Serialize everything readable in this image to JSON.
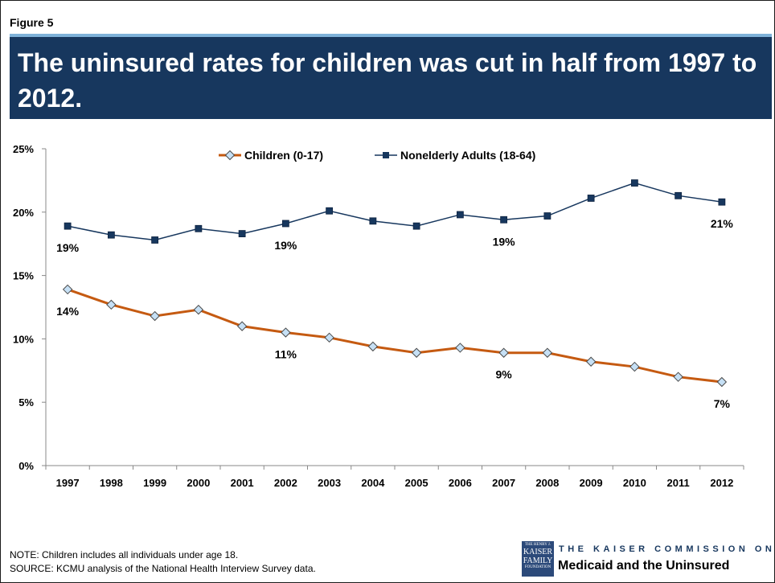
{
  "figure_label": "Figure 5",
  "title": "The uninsured rates for children was cut in half from 1997 to 2012.",
  "notes": [
    "NOTE: Children includes all individuals under age 18.",
    "SOURCE:  KCMU analysis of the National Health Interview Survey data."
  ],
  "logo": {
    "box_lines": [
      "THE HENRY J.",
      "KAISER",
      "FAMILY",
      "FOUNDATION"
    ],
    "line1": "THE KAISER COMMISSION ON",
    "line2": "Medicaid and the Uninsured"
  },
  "chart_data": {
    "type": "line",
    "x": [
      "1997",
      "1998",
      "1999",
      "2000",
      "2001",
      "2002",
      "2003",
      "2004",
      "2005",
      "2006",
      "2007",
      "2008",
      "2009",
      "2010",
      "2011",
      "2012"
    ],
    "ylim": [
      0,
      25
    ],
    "yticks": [
      "0%",
      "5%",
      "10%",
      "15%",
      "20%",
      "25%"
    ],
    "legend_position": "top-center",
    "grid": false,
    "series": [
      {
        "name": "Children (0-17)",
        "color": "#c55a11",
        "marker": "diamond",
        "values": [
          13.9,
          12.7,
          11.8,
          12.3,
          11.0,
          10.5,
          10.1,
          9.4,
          8.9,
          9.3,
          8.9,
          8.9,
          8.2,
          7.8,
          7.0,
          6.6
        ],
        "data_labels": [
          {
            "index": 0,
            "text": "14%"
          },
          {
            "index": 5,
            "text": "11%"
          },
          {
            "index": 10,
            "text": "9%"
          },
          {
            "index": 15,
            "text": "7%"
          }
        ]
      },
      {
        "name": "Nonelderly Adults (18-64)",
        "color": "#17375e",
        "marker": "square",
        "values": [
          18.9,
          18.2,
          17.8,
          18.7,
          18.3,
          19.1,
          20.1,
          19.3,
          18.9,
          19.8,
          19.4,
          19.7,
          21.1,
          22.3,
          21.3,
          20.8
        ],
        "data_labels": [
          {
            "index": 0,
            "text": "19%"
          },
          {
            "index": 5,
            "text": "19%"
          },
          {
            "index": 10,
            "text": "19%"
          },
          {
            "index": 15,
            "text": "21%"
          }
        ]
      }
    ]
  }
}
